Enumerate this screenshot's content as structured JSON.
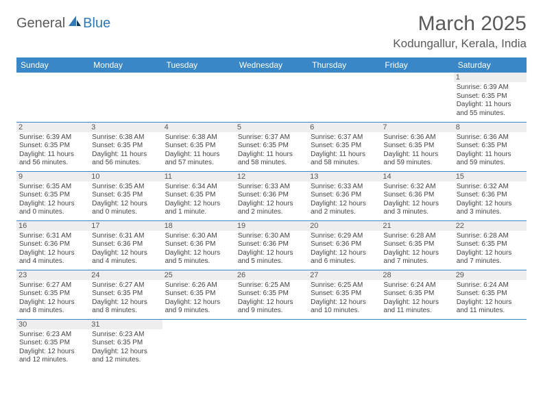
{
  "logo": {
    "word1": "General",
    "word2": "Blue"
  },
  "header": {
    "title": "March 2025",
    "location": "Kodungallur, Kerala, India"
  },
  "colors": {
    "header_bg": "#3a87c8",
    "header_text": "#ffffff",
    "daynum_bg": "#eeeeee",
    "border": "#3a87c8",
    "text": "#444444"
  },
  "dayNames": [
    "Sunday",
    "Monday",
    "Tuesday",
    "Wednesday",
    "Thursday",
    "Friday",
    "Saturday"
  ],
  "weeks": [
    [
      null,
      null,
      null,
      null,
      null,
      null,
      {
        "n": "1",
        "sunrise": "Sunrise: 6:39 AM",
        "sunset": "Sunset: 6:35 PM",
        "day1": "Daylight: 11 hours",
        "day2": "and 55 minutes."
      }
    ],
    [
      {
        "n": "2",
        "sunrise": "Sunrise: 6:39 AM",
        "sunset": "Sunset: 6:35 PM",
        "day1": "Daylight: 11 hours",
        "day2": "and 56 minutes."
      },
      {
        "n": "3",
        "sunrise": "Sunrise: 6:38 AM",
        "sunset": "Sunset: 6:35 PM",
        "day1": "Daylight: 11 hours",
        "day2": "and 56 minutes."
      },
      {
        "n": "4",
        "sunrise": "Sunrise: 6:38 AM",
        "sunset": "Sunset: 6:35 PM",
        "day1": "Daylight: 11 hours",
        "day2": "and 57 minutes."
      },
      {
        "n": "5",
        "sunrise": "Sunrise: 6:37 AM",
        "sunset": "Sunset: 6:35 PM",
        "day1": "Daylight: 11 hours",
        "day2": "and 58 minutes."
      },
      {
        "n": "6",
        "sunrise": "Sunrise: 6:37 AM",
        "sunset": "Sunset: 6:35 PM",
        "day1": "Daylight: 11 hours",
        "day2": "and 58 minutes."
      },
      {
        "n": "7",
        "sunrise": "Sunrise: 6:36 AM",
        "sunset": "Sunset: 6:35 PM",
        "day1": "Daylight: 11 hours",
        "day2": "and 59 minutes."
      },
      {
        "n": "8",
        "sunrise": "Sunrise: 6:36 AM",
        "sunset": "Sunset: 6:35 PM",
        "day1": "Daylight: 11 hours",
        "day2": "and 59 minutes."
      }
    ],
    [
      {
        "n": "9",
        "sunrise": "Sunrise: 6:35 AM",
        "sunset": "Sunset: 6:35 PM",
        "day1": "Daylight: 12 hours",
        "day2": "and 0 minutes."
      },
      {
        "n": "10",
        "sunrise": "Sunrise: 6:35 AM",
        "sunset": "Sunset: 6:35 PM",
        "day1": "Daylight: 12 hours",
        "day2": "and 0 minutes."
      },
      {
        "n": "11",
        "sunrise": "Sunrise: 6:34 AM",
        "sunset": "Sunset: 6:35 PM",
        "day1": "Daylight: 12 hours",
        "day2": "and 1 minute."
      },
      {
        "n": "12",
        "sunrise": "Sunrise: 6:33 AM",
        "sunset": "Sunset: 6:36 PM",
        "day1": "Daylight: 12 hours",
        "day2": "and 2 minutes."
      },
      {
        "n": "13",
        "sunrise": "Sunrise: 6:33 AM",
        "sunset": "Sunset: 6:36 PM",
        "day1": "Daylight: 12 hours",
        "day2": "and 2 minutes."
      },
      {
        "n": "14",
        "sunrise": "Sunrise: 6:32 AM",
        "sunset": "Sunset: 6:36 PM",
        "day1": "Daylight: 12 hours",
        "day2": "and 3 minutes."
      },
      {
        "n": "15",
        "sunrise": "Sunrise: 6:32 AM",
        "sunset": "Sunset: 6:36 PM",
        "day1": "Daylight: 12 hours",
        "day2": "and 3 minutes."
      }
    ],
    [
      {
        "n": "16",
        "sunrise": "Sunrise: 6:31 AM",
        "sunset": "Sunset: 6:36 PM",
        "day1": "Daylight: 12 hours",
        "day2": "and 4 minutes."
      },
      {
        "n": "17",
        "sunrise": "Sunrise: 6:31 AM",
        "sunset": "Sunset: 6:36 PM",
        "day1": "Daylight: 12 hours",
        "day2": "and 4 minutes."
      },
      {
        "n": "18",
        "sunrise": "Sunrise: 6:30 AM",
        "sunset": "Sunset: 6:36 PM",
        "day1": "Daylight: 12 hours",
        "day2": "and 5 minutes."
      },
      {
        "n": "19",
        "sunrise": "Sunrise: 6:30 AM",
        "sunset": "Sunset: 6:36 PM",
        "day1": "Daylight: 12 hours",
        "day2": "and 5 minutes."
      },
      {
        "n": "20",
        "sunrise": "Sunrise: 6:29 AM",
        "sunset": "Sunset: 6:36 PM",
        "day1": "Daylight: 12 hours",
        "day2": "and 6 minutes."
      },
      {
        "n": "21",
        "sunrise": "Sunrise: 6:28 AM",
        "sunset": "Sunset: 6:35 PM",
        "day1": "Daylight: 12 hours",
        "day2": "and 7 minutes."
      },
      {
        "n": "22",
        "sunrise": "Sunrise: 6:28 AM",
        "sunset": "Sunset: 6:35 PM",
        "day1": "Daylight: 12 hours",
        "day2": "and 7 minutes."
      }
    ],
    [
      {
        "n": "23",
        "sunrise": "Sunrise: 6:27 AM",
        "sunset": "Sunset: 6:35 PM",
        "day1": "Daylight: 12 hours",
        "day2": "and 8 minutes."
      },
      {
        "n": "24",
        "sunrise": "Sunrise: 6:27 AM",
        "sunset": "Sunset: 6:35 PM",
        "day1": "Daylight: 12 hours",
        "day2": "and 8 minutes."
      },
      {
        "n": "25",
        "sunrise": "Sunrise: 6:26 AM",
        "sunset": "Sunset: 6:35 PM",
        "day1": "Daylight: 12 hours",
        "day2": "and 9 minutes."
      },
      {
        "n": "26",
        "sunrise": "Sunrise: 6:25 AM",
        "sunset": "Sunset: 6:35 PM",
        "day1": "Daylight: 12 hours",
        "day2": "and 9 minutes."
      },
      {
        "n": "27",
        "sunrise": "Sunrise: 6:25 AM",
        "sunset": "Sunset: 6:35 PM",
        "day1": "Daylight: 12 hours",
        "day2": "and 10 minutes."
      },
      {
        "n": "28",
        "sunrise": "Sunrise: 6:24 AM",
        "sunset": "Sunset: 6:35 PM",
        "day1": "Daylight: 12 hours",
        "day2": "and 11 minutes."
      },
      {
        "n": "29",
        "sunrise": "Sunrise: 6:24 AM",
        "sunset": "Sunset: 6:35 PM",
        "day1": "Daylight: 12 hours",
        "day2": "and 11 minutes."
      }
    ],
    [
      {
        "n": "30",
        "sunrise": "Sunrise: 6:23 AM",
        "sunset": "Sunset: 6:35 PM",
        "day1": "Daylight: 12 hours",
        "day2": "and 12 minutes."
      },
      {
        "n": "31",
        "sunrise": "Sunrise: 6:23 AM",
        "sunset": "Sunset: 6:35 PM",
        "day1": "Daylight: 12 hours",
        "day2": "and 12 minutes."
      },
      null,
      null,
      null,
      null,
      null
    ]
  ]
}
